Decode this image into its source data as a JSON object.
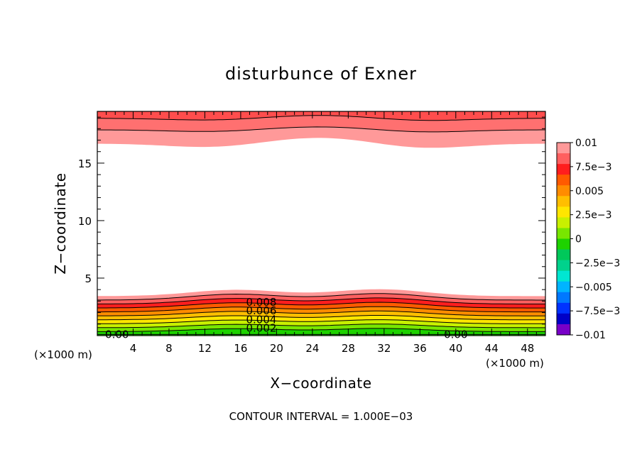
{
  "chart_data": {
    "type": "contour",
    "title": "disturbunce of Exner",
    "xlabel": "X−coordinate",
    "ylabel": "Z−coordinate",
    "x_unit_left": "(×1000 m)",
    "x_unit_right": "(×1000 m)",
    "footer": "CONTOUR INTERVAL = 1.000E−03",
    "xlim": [
      0,
      50
    ],
    "ylim": [
      0,
      19.5
    ],
    "x_ticks": [
      4,
      8,
      12,
      16,
      20,
      24,
      28,
      32,
      36,
      40,
      44,
      48
    ],
    "x_tick_labels": [
      "4",
      "8",
      "12",
      "16",
      "20",
      "24",
      "28",
      "32",
      "36",
      "40",
      "44",
      "48"
    ],
    "y_ticks": [
      5,
      10,
      15
    ],
    "y_tick_labels": [
      "5",
      "10",
      "15"
    ],
    "contour_interval": 0.001,
    "contour_labels": [
      {
        "text": "0.008",
        "x": 18.3,
        "z": 2.9
      },
      {
        "text": "0.006",
        "x": 18.3,
        "z": 2.15
      },
      {
        "text": "0.004",
        "x": 18.3,
        "z": 1.4
      },
      {
        "text": "0.002",
        "x": 18.3,
        "z": 0.65
      },
      {
        "text": "0.00",
        "x": 2.2,
        "z": 0.1
      },
      {
        "text": "0.00",
        "x": 40.0,
        "z": 0.1
      }
    ],
    "colorbar": {
      "tick_labels": [
        "0.01",
        "7.5e−3",
        "0.005",
        "2.5e−3",
        "0",
        "−2.5e−3",
        "−0.005",
        "−7.5e−3",
        "−0.01"
      ],
      "levels_top_to_bottom": [
        {
          "color": "#ff9999"
        },
        {
          "color": "#ff5f5f"
        },
        {
          "color": "#ff1e1e"
        },
        {
          "color": "#ff5a00"
        },
        {
          "color": "#ff8c00"
        },
        {
          "color": "#ffbe00"
        },
        {
          "color": "#ffe600"
        },
        {
          "color": "#c8f000"
        },
        {
          "color": "#78e600"
        },
        {
          "color": "#1ed200"
        },
        {
          "color": "#00c85a"
        },
        {
          "color": "#00d28c"
        },
        {
          "color": "#00e6d2"
        },
        {
          "color": "#00b4ff"
        },
        {
          "color": "#0078ff"
        },
        {
          "color": "#0032ff"
        },
        {
          "color": "#0000c8"
        },
        {
          "color": "#7800c8"
        }
      ]
    },
    "bottom_bands": [
      {
        "top_z": 3.55,
        "color": "#ff9999"
      },
      {
        "top_z": 3.2,
        "color": "#ff5f5f"
      },
      {
        "top_z": 2.85,
        "color": "#ff1e1e"
      },
      {
        "top_z": 2.5,
        "color": "#ff5a00"
      },
      {
        "top_z": 2.15,
        "color": "#ff8c00"
      },
      {
        "top_z": 1.8,
        "color": "#ffbe00"
      },
      {
        "top_z": 1.45,
        "color": "#ffe600"
      },
      {
        "top_z": 1.1,
        "color": "#c8f000"
      },
      {
        "top_z": 0.75,
        "color": "#78e600"
      },
      {
        "top_z": 0.4,
        "color": "#1ed200"
      }
    ],
    "top_bands": [
      {
        "bottom_z": 16.7,
        "color": "#ff9999"
      },
      {
        "bottom_z": 17.9,
        "color": "#ff7070"
      },
      {
        "bottom_z": 18.9,
        "color": "#ff4d4d"
      }
    ],
    "wave": {
      "bottom_peaks_x": [
        15.5,
        31.5
      ],
      "top_bumps_x": [
        25.0
      ],
      "top_dips_x": [
        13.0,
        36.0
      ]
    },
    "grid": false,
    "legend": "colorbar right"
  }
}
